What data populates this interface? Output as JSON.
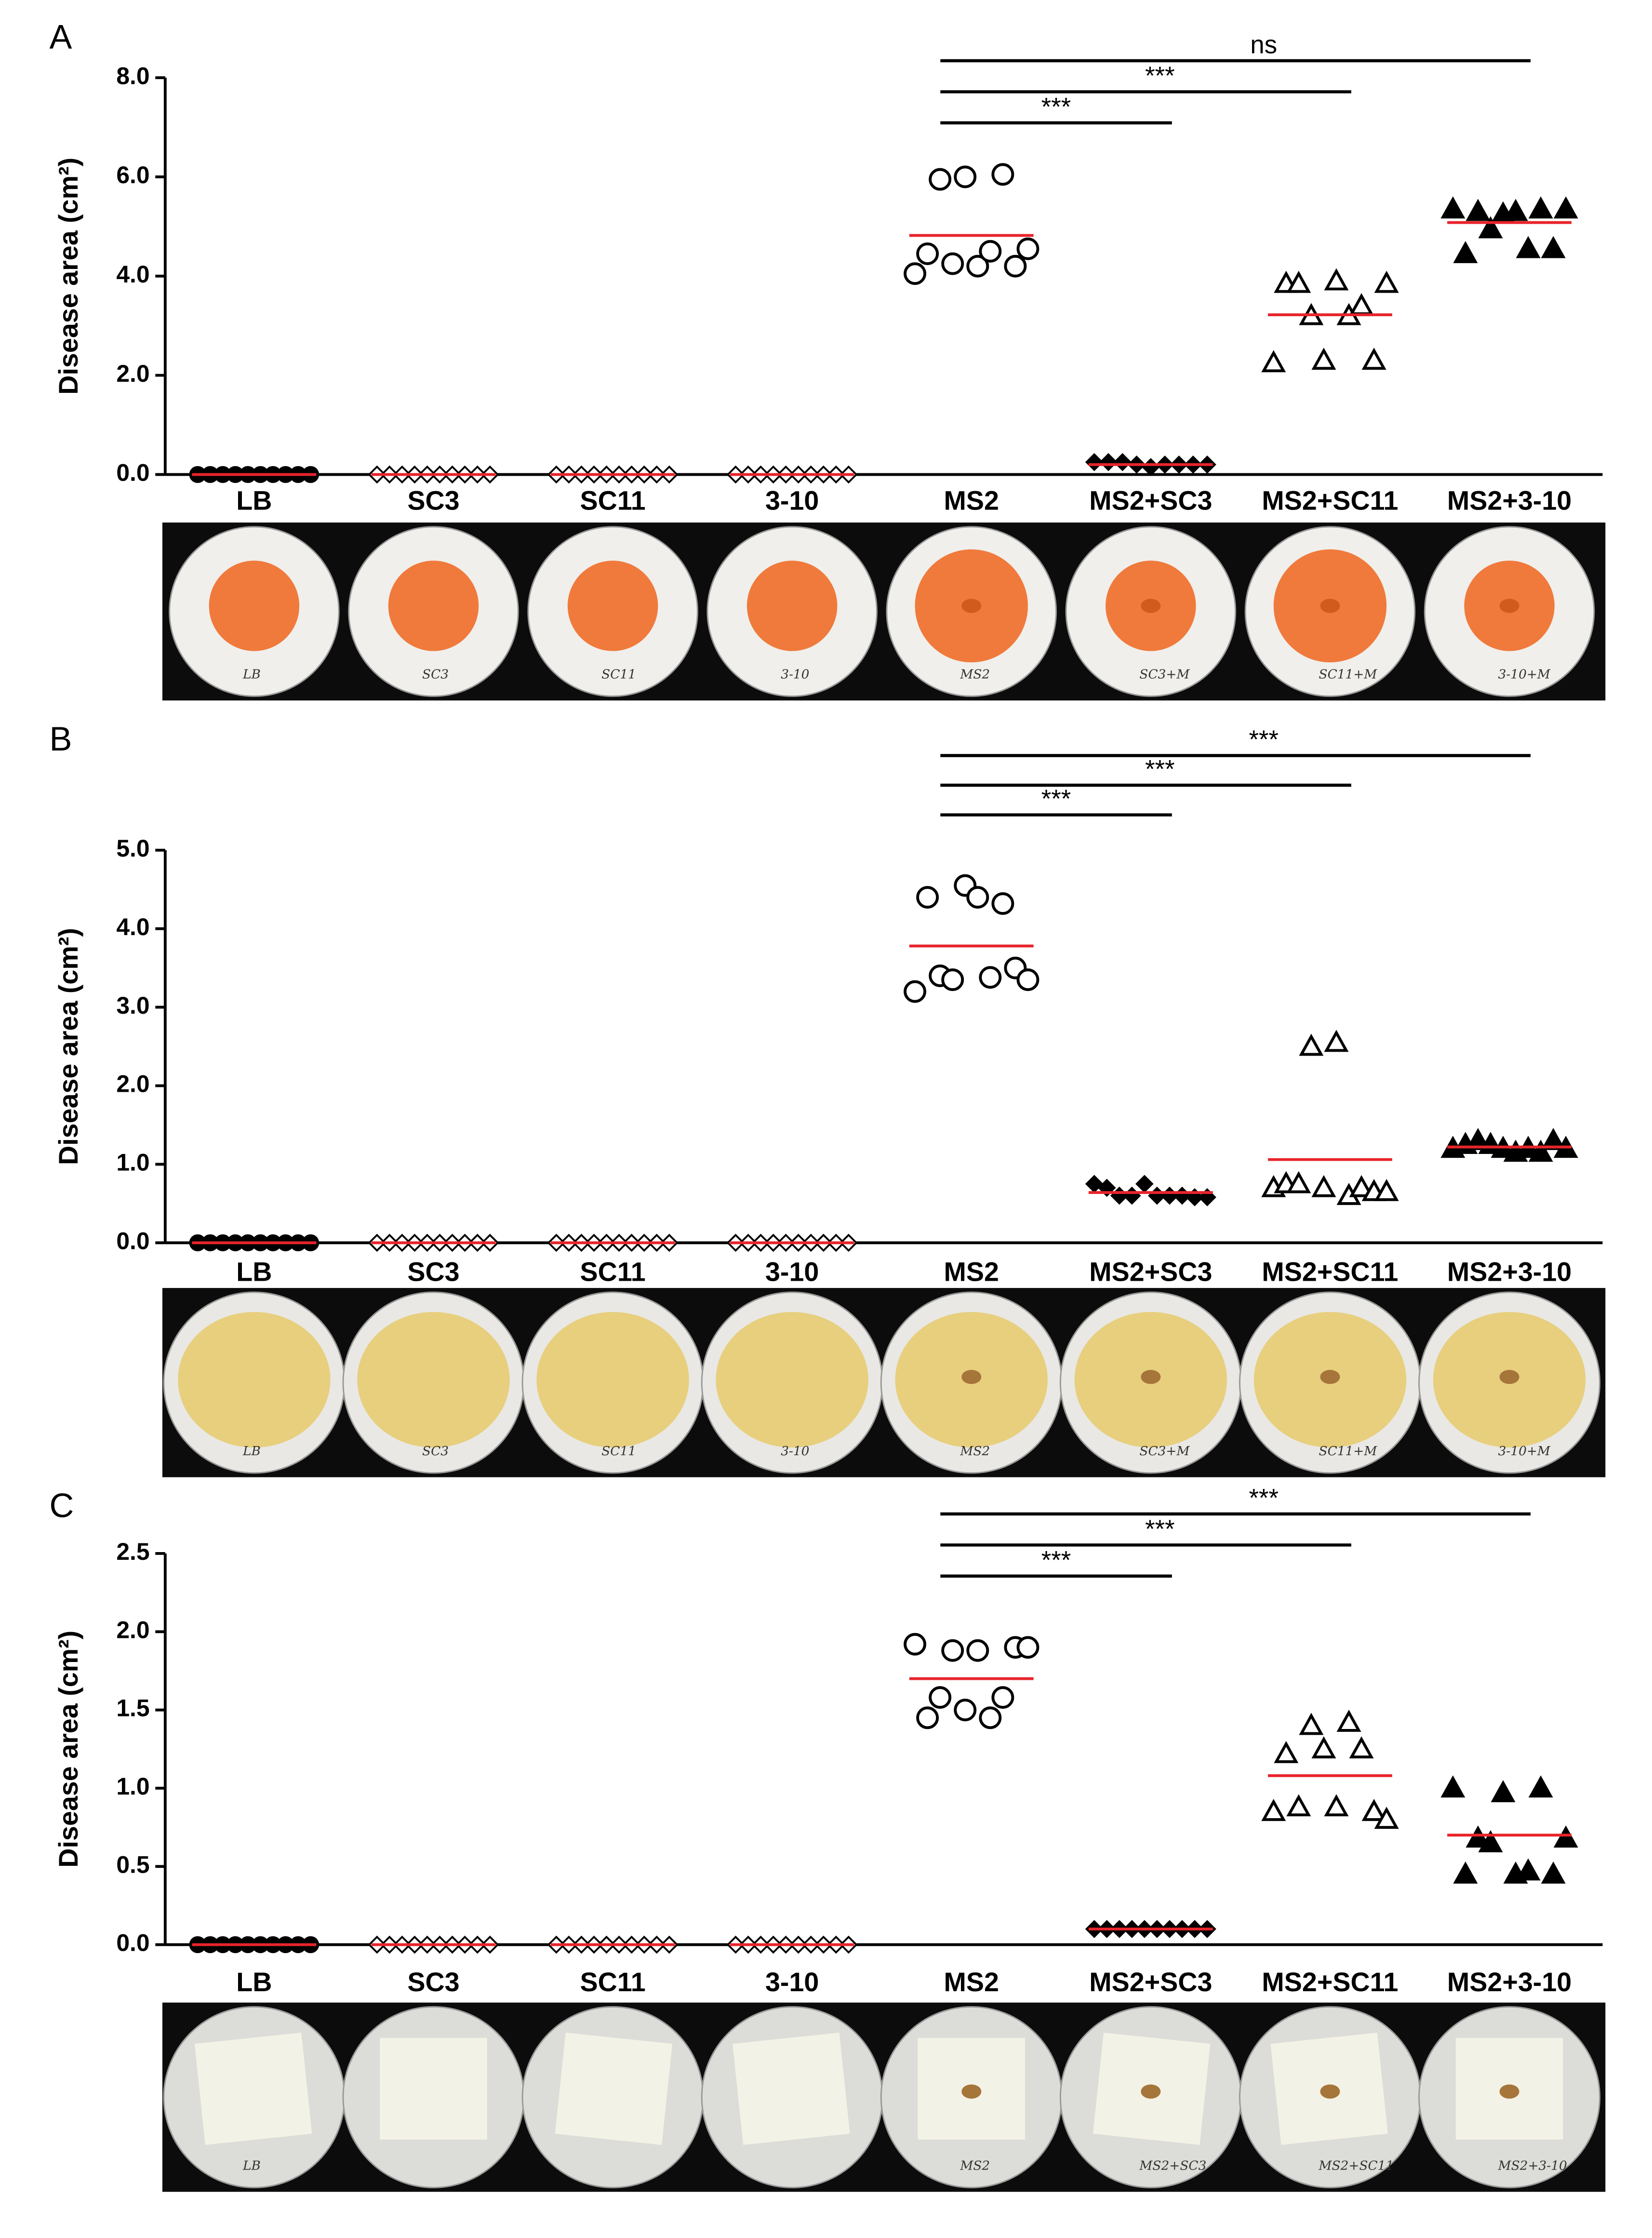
{
  "chart_data": [
    {
      "type": "strip",
      "panel": "A",
      "ylabel": "Disease area (cm²)",
      "categories": [
        "LB",
        "SC3",
        "SC11",
        "3-10",
        "MS2",
        "MS2+SC3",
        "MS2+SC11",
        "MS2+3-10"
      ],
      "markers": [
        "circle-filled",
        "diamond-open",
        "diamond-open",
        "diamond-open",
        "circle-open",
        "diamond-filled",
        "triangle-open",
        "triangle-filled"
      ],
      "points": [
        [
          0,
          0,
          0,
          0,
          0,
          0,
          0,
          0,
          0,
          0
        ],
        [
          0,
          0,
          0,
          0,
          0,
          0,
          0,
          0,
          0,
          0
        ],
        [
          0,
          0,
          0,
          0,
          0,
          0,
          0,
          0,
          0,
          0
        ],
        [
          0,
          0,
          0,
          0,
          0,
          0,
          0,
          0,
          0,
          0
        ],
        [
          4.05,
          4.45,
          5.95,
          4.25,
          6.0,
          4.2,
          4.5,
          6.05,
          4.2,
          4.55
        ],
        [
          0.25,
          0.25,
          0.25,
          0.2,
          0.15,
          0.2,
          0.2,
          0.2,
          0.2
        ],
        [
          2.25,
          3.85,
          3.85,
          3.2,
          2.3,
          3.9,
          3.2,
          3.4,
          2.3,
          3.85
        ],
        [
          5.35,
          4.45,
          5.3,
          4.95,
          5.25,
          5.3,
          4.55,
          5.35,
          4.55,
          5.35
        ]
      ],
      "means": [
        0,
        0,
        0,
        0,
        4.82,
        0.2,
        3.22,
        5.08
      ],
      "color": "#000000",
      "mean_color": "#e8242b",
      "ylim": [
        0,
        8
      ],
      "yticks": [
        {
          "value": 0,
          "label": "0.0"
        },
        {
          "value": 2,
          "label": "2.0"
        },
        {
          "value": 4,
          "label": "4.0"
        },
        {
          "value": 6,
          "label": "6.0"
        },
        {
          "value": 8,
          "label": "8.0"
        }
      ],
      "annotations": [
        {
          "from": "MS2",
          "to": "MS2+3-10",
          "label": "ns"
        },
        {
          "from": "MS2",
          "to": "MS2+SC11",
          "label": "***"
        },
        {
          "from": "MS2",
          "to": "MS2+SC3",
          "label": "***"
        }
      ],
      "photo_labels": [
        "LB",
        "SC3",
        "SC11",
        "3-10",
        "MS2",
        "SC3+M",
        "SC11+M",
        "3-10+M"
      ]
    },
    {
      "type": "strip",
      "panel": "B",
      "ylabel": "Disease area (cm²)",
      "categories": [
        "LB",
        "SC3",
        "SC11",
        "3-10",
        "MS2",
        "MS2+SC3",
        "MS2+SC11",
        "MS2+3-10"
      ],
      "markers": [
        "circle-filled",
        "diamond-open",
        "diamond-open",
        "diamond-open",
        "circle-open",
        "diamond-filled",
        "triangle-open",
        "triangle-filled"
      ],
      "points": [
        [
          0,
          0,
          0,
          0,
          0,
          0,
          0,
          0,
          0,
          0
        ],
        [
          0,
          0,
          0,
          0,
          0,
          0,
          0,
          0,
          0,
          0
        ],
        [
          0,
          0,
          0,
          0,
          0,
          0,
          0,
          0,
          0,
          0
        ],
        [
          0,
          0,
          0,
          0,
          0,
          0,
          0,
          0,
          0,
          0
        ],
        [
          3.2,
          4.4,
          3.4,
          3.35,
          4.55,
          4.4,
          3.38,
          4.32,
          3.5,
          3.35
        ],
        [
          0.75,
          0.7,
          0.6,
          0.6,
          0.75,
          0.6,
          0.6,
          0.6,
          0.58,
          0.58
        ],
        [
          0.7,
          0.75,
          0.75,
          2.5,
          0.7,
          2.55,
          0.6,
          0.7,
          0.65,
          0.65
        ],
        [
          1.2,
          1.25,
          1.3,
          1.25,
          1.2,
          1.15,
          1.2,
          1.15,
          1.3,
          1.2
        ]
      ],
      "means": [
        0,
        0,
        0,
        0,
        3.78,
        0.64,
        1.06,
        1.22
      ],
      "color": "#000000",
      "mean_color": "#e8242b",
      "ylim": [
        0,
        5
      ],
      "yticks": [
        {
          "value": 0,
          "label": "0.0"
        },
        {
          "value": 1,
          "label": "1.0"
        },
        {
          "value": 2,
          "label": "2.0"
        },
        {
          "value": 3,
          "label": "3.0"
        },
        {
          "value": 4,
          "label": "4.0"
        },
        {
          "value": 5,
          "label": "5.0"
        }
      ],
      "annotations": [
        {
          "from": "MS2",
          "to": "MS2+3-10",
          "label": "***"
        },
        {
          "from": "MS2",
          "to": "MS2+SC11",
          "label": "***"
        },
        {
          "from": "MS2",
          "to": "MS2+SC3",
          "label": "***"
        }
      ],
      "photo_labels": [
        "LB",
        "SC3",
        "SC11",
        "3-10",
        "MS2",
        "SC3+M",
        "SC11+M",
        "3-10+M"
      ]
    },
    {
      "type": "strip",
      "panel": "C",
      "ylabel": "Disease area (cm²)",
      "categories": [
        "LB",
        "SC3",
        "SC11",
        "3-10",
        "MS2",
        "MS2+SC3",
        "MS2+SC11",
        "MS2+3-10"
      ],
      "markers": [
        "circle-filled",
        "diamond-open",
        "diamond-open",
        "diamond-open",
        "circle-open",
        "diamond-filled",
        "triangle-open",
        "triangle-filled"
      ],
      "points": [
        [
          0,
          0,
          0,
          0,
          0,
          0,
          0,
          0,
          0,
          0
        ],
        [
          0,
          0,
          0,
          0,
          0,
          0,
          0,
          0,
          0,
          0
        ],
        [
          0,
          0,
          0,
          0,
          0,
          0,
          0,
          0,
          0,
          0
        ],
        [
          0,
          0,
          0,
          0,
          0,
          0,
          0,
          0,
          0,
          0
        ],
        [
          1.92,
          1.45,
          1.58,
          1.88,
          1.5,
          1.88,
          1.45,
          1.58,
          1.9,
          1.9
        ],
        [
          0.1,
          0.1,
          0.1,
          0.1,
          0.1,
          0.1,
          0.1,
          0.1,
          0.1,
          0.1
        ],
        [
          0.85,
          1.22,
          0.88,
          1.4,
          1.25,
          0.88,
          1.42,
          1.25,
          0.85,
          0.8
        ],
        [
          1.0,
          0.45,
          0.68,
          0.65,
          0.97,
          0.45,
          0.47,
          1.0,
          0.45,
          0.68
        ]
      ],
      "means": [
        0,
        0,
        0,
        0,
        1.7,
        0.1,
        1.08,
        0.7
      ],
      "color": "#000000",
      "mean_color": "#e8242b",
      "ylim": [
        0,
        2.5
      ],
      "yticks": [
        {
          "value": 0,
          "label": "0.0"
        },
        {
          "value": 0.5,
          "label": "0.5"
        },
        {
          "value": 1,
          "label": "1.0"
        },
        {
          "value": 1.5,
          "label": "1.5"
        },
        {
          "value": 2,
          "label": "2.0"
        },
        {
          "value": 2.5,
          "label": "2.5"
        }
      ],
      "annotations": [
        {
          "from": "MS2",
          "to": "MS2+3-10",
          "label": "***"
        },
        {
          "from": "MS2",
          "to": "MS2+SC11",
          "label": "***"
        },
        {
          "from": "MS2",
          "to": "MS2+SC3",
          "label": "***"
        }
      ],
      "photo_labels": [
        "LB",
        null,
        null,
        null,
        "MS2",
        "MS2+SC3",
        "MS2+SC11",
        "MS2+3-10"
      ]
    }
  ]
}
